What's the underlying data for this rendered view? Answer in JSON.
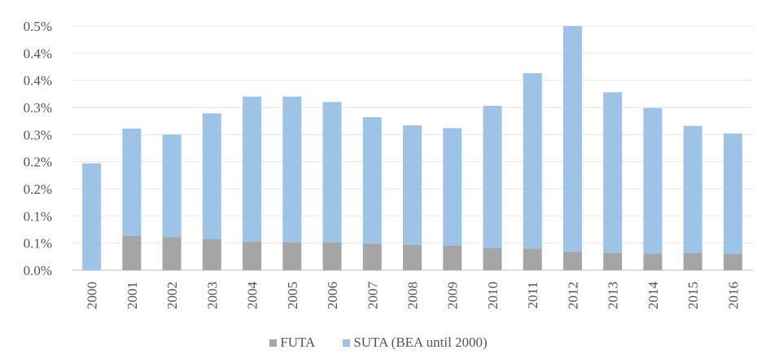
{
  "chart_data": {
    "type": "bar",
    "stacked": true,
    "categories": [
      "2000",
      "2001",
      "2002",
      "2003",
      "2004",
      "2005",
      "2006",
      "2007",
      "2008",
      "2009",
      "2010",
      "2011",
      "2012",
      "2013",
      "2014",
      "2015",
      "2016"
    ],
    "series": [
      {
        "name": "FUTA",
        "color": "#a5a5a5",
        "values": [
          0.0,
          0.063,
          0.061,
          0.057,
          0.053,
          0.051,
          0.051,
          0.049,
          0.047,
          0.046,
          0.041,
          0.04,
          0.034,
          0.032,
          0.031,
          0.032,
          0.03
        ]
      },
      {
        "name": "SUTA (BEA until 2000)",
        "color": "#9dc3e6",
        "values": [
          0.197,
          0.198,
          0.189,
          0.232,
          0.267,
          0.269,
          0.259,
          0.233,
          0.22,
          0.216,
          0.262,
          0.323,
          0.416,
          0.296,
          0.268,
          0.234,
          0.222
        ]
      }
    ],
    "y_tick_labels": [
      "0.0%",
      "0.1%",
      "0.1%",
      "0.2%",
      "0.2%",
      "0.3%",
      "0.3%",
      "0.4%",
      "0.4%",
      "0.5%"
    ],
    "ylim": [
      0,
      0.45
    ],
    "grid": true,
    "legend_position": "bottom"
  }
}
